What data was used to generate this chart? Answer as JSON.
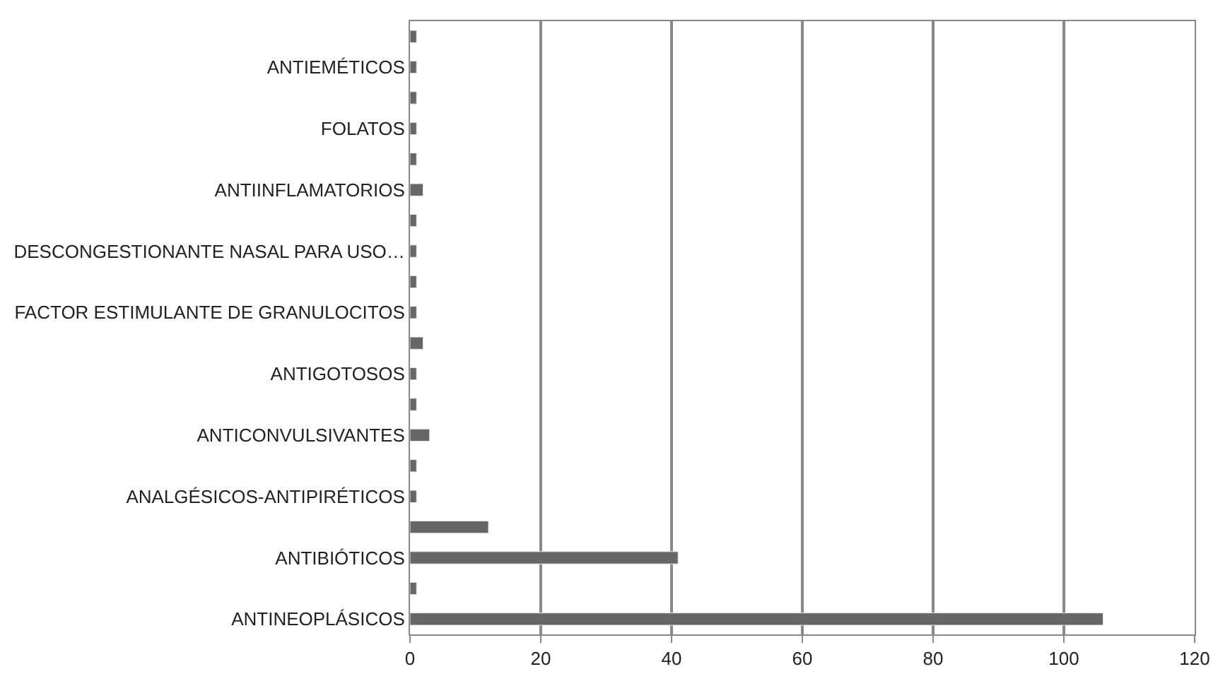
{
  "chart_data": {
    "type": "bar",
    "orientation": "horizontal",
    "categories": [
      null,
      "ANTIEMÉTICOS",
      null,
      "FOLATOS",
      null,
      "ANTIINFLAMATORIOS",
      null,
      "DESCONGESTIONANTE NASAL PARA USO…",
      null,
      "FACTOR ESTIMULANTE DE GRANULOCITOS",
      null,
      "ANTIGOTOSOS",
      null,
      "ANTICONVULSIVANTES",
      null,
      "ANALGÉSICOS-ANTIPIRÉTICOS",
      null,
      "ANTIBIÓTICOS",
      null,
      "ANTINEOPLÁSICOS"
    ],
    "values": [
      1,
      1,
      1,
      1,
      1,
      2,
      1,
      1,
      1,
      1,
      2,
      1,
      1,
      3,
      1,
      1,
      12,
      41,
      1,
      106
    ],
    "color": "#666666",
    "xlim": [
      0,
      120
    ],
    "xticks": [
      0,
      20,
      40,
      60,
      80,
      100,
      120
    ],
    "grid": "x"
  }
}
